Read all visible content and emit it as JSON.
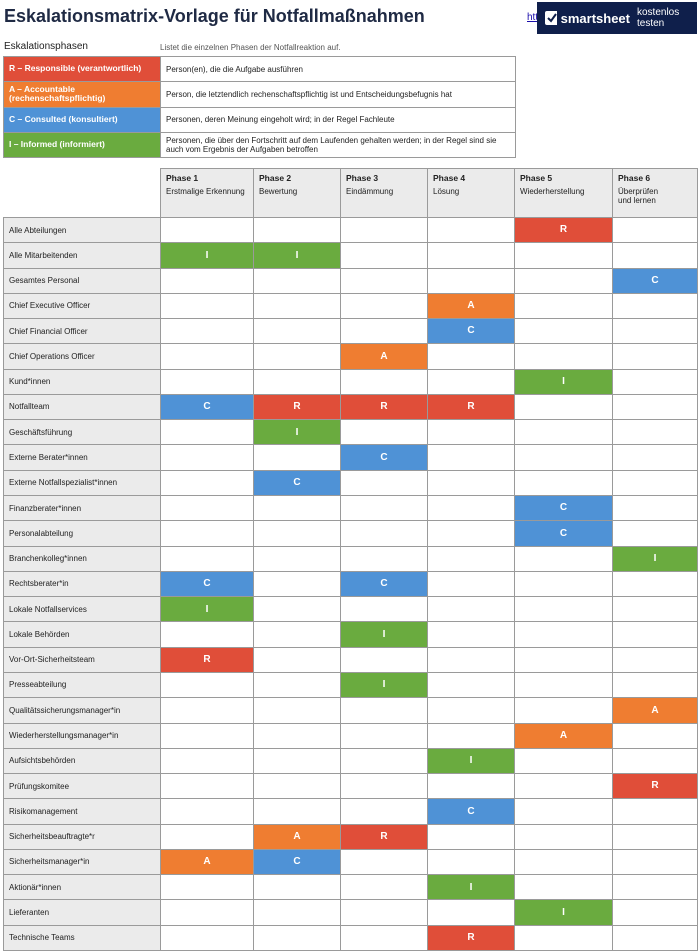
{
  "header": {
    "title": "Eskalationsmatrix-Vorlage für Notfallmaßnahmen",
    "link": "htt",
    "banner_brand": "smartsheet",
    "banner_action": "kostenlos testen"
  },
  "legend": {
    "heading": "Eskalationsphasen",
    "description": "Listet die einzelnen Phasen der Notfallreaktion auf.",
    "items": [
      {
        "label": "R – Responsible (verantwortlich)",
        "text": "Person(en), die die Aufgabe ausführen",
        "color": "#e04e39"
      },
      {
        "label": "A – Accountable (rechenschaftspflichtig)",
        "text": "Person, die letztendlich rechenschaftspflichtig ist und Entscheidungsbefugnis hat",
        "color": "#ef7d31"
      },
      {
        "label": "C – Consulted (konsultiert)",
        "text": "Personen, deren Meinung eingeholt wird; in der Regel Fachleute",
        "color": "#4f92d6"
      },
      {
        "label": "I – Informed (informiert)",
        "text": "Personen, die über den Fortschritt auf dem Laufenden gehalten werden; in der Regel sind sie auch vom Ergebnis der Aufgaben betroffen",
        "color": "#6aab3f"
      }
    ]
  },
  "table": {
    "phases": [
      {
        "name": "Phase 1",
        "subtitle": "Erstmalige Erkennung"
      },
      {
        "name": "Phase 2",
        "subtitle": "Bewertung"
      },
      {
        "name": "Phase 3",
        "subtitle": "Eindämmung"
      },
      {
        "name": "Phase 4",
        "subtitle": "Lösung"
      },
      {
        "name": "Phase 5",
        "subtitle": "Wiederherstellung"
      },
      {
        "name": "Phase 6",
        "subtitle": "Überprüfen und lernen"
      }
    ],
    "rows": [
      {
        "role": "Alle Abteilungen",
        "cells": [
          "",
          "",
          "",
          "",
          "R",
          ""
        ]
      },
      {
        "role": "Alle Mitarbeitenden",
        "cells": [
          "I",
          "I",
          "",
          "",
          "",
          ""
        ]
      },
      {
        "role": "Gesamtes Personal",
        "cells": [
          "",
          "",
          "",
          "",
          "",
          "C"
        ]
      },
      {
        "role": "Chief Executive Officer",
        "cells": [
          "",
          "",
          "",
          "A",
          "",
          ""
        ]
      },
      {
        "role": "Chief Financial Officer",
        "cells": [
          "",
          "",
          "",
          "C",
          "",
          ""
        ]
      },
      {
        "role": "Chief Operations Officer",
        "cells": [
          "",
          "",
          "A",
          "",
          "",
          ""
        ]
      },
      {
        "role": "Kund*innen",
        "cells": [
          "",
          "",
          "",
          "",
          "I",
          ""
        ]
      },
      {
        "role": "Notfallteam",
        "cells": [
          "C",
          "R",
          "R",
          "R",
          "",
          ""
        ]
      },
      {
        "role": "Geschäftsführung",
        "cells": [
          "",
          "I",
          "",
          "",
          "",
          ""
        ]
      },
      {
        "role": "Externe Berater*innen",
        "cells": [
          "",
          "",
          "C",
          "",
          "",
          ""
        ]
      },
      {
        "role": "Externe Notfallspezialist*innen",
        "cells": [
          "",
          "C",
          "",
          "",
          "",
          ""
        ]
      },
      {
        "role": "Finanzberater*innen",
        "cells": [
          "",
          "",
          "",
          "",
          "C",
          ""
        ]
      },
      {
        "role": "Personalabteilung",
        "cells": [
          "",
          "",
          "",
          "",
          "C",
          ""
        ]
      },
      {
        "role": "Branchenkolleg*innen",
        "cells": [
          "",
          "",
          "",
          "",
          "",
          "I"
        ]
      },
      {
        "role": "Rechtsberater*in",
        "cells": [
          "C",
          "",
          "C",
          "",
          "",
          ""
        ]
      },
      {
        "role": "Lokale Notfallservices",
        "cells": [
          "I",
          "",
          "",
          "",
          "",
          ""
        ]
      },
      {
        "role": "Lokale Behörden",
        "cells": [
          "",
          "",
          "I",
          "",
          "",
          ""
        ]
      },
      {
        "role": "Vor-Ort-Sicherheitsteam",
        "cells": [
          "R",
          "",
          "",
          "",
          "",
          ""
        ]
      },
      {
        "role": "Presseabteilung",
        "cells": [
          "",
          "",
          "I",
          "",
          "",
          ""
        ]
      },
      {
        "role": "Qualitätssicherungsmanager*in",
        "cells": [
          "",
          "",
          "",
          "",
          "",
          "A"
        ]
      },
      {
        "role": "Wiederherstellungsmanager*in",
        "cells": [
          "",
          "",
          "",
          "",
          "A",
          ""
        ]
      },
      {
        "role": "Aufsichtsbehörden",
        "cells": [
          "",
          "",
          "",
          "I",
          "",
          ""
        ]
      },
      {
        "role": "Prüfungskomitee",
        "cells": [
          "",
          "",
          "",
          "",
          "",
          "R"
        ]
      },
      {
        "role": "Risikomanagement",
        "cells": [
          "",
          "",
          "",
          "C",
          "",
          ""
        ]
      },
      {
        "role": "Sicherheitsbeauftragte*r",
        "cells": [
          "",
          "A",
          "R",
          "",
          "",
          ""
        ]
      },
      {
        "role": "Sicherheitsmanager*in",
        "cells": [
          "A",
          "C",
          "",
          "",
          "",
          ""
        ]
      },
      {
        "role": "Aktionär*innen",
        "cells": [
          "",
          "",
          "",
          "I",
          "",
          ""
        ]
      },
      {
        "role": "Lieferanten",
        "cells": [
          "",
          "",
          "",
          "",
          "I",
          ""
        ]
      },
      {
        "role": "Technische Teams",
        "cells": [
          "",
          "",
          "",
          "R",
          "",
          ""
        ]
      }
    ]
  }
}
